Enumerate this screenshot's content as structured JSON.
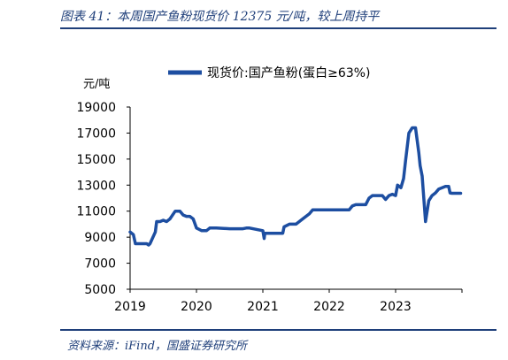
{
  "figure": {
    "title": "图表 41：本周国产鱼粉现货价 12375 元/吨，较上周持平",
    "source": "资料来源：iFind，国盛证券研究所"
  },
  "chart_data": {
    "type": "line",
    "ylabel": "元/吨",
    "ylim": [
      5000,
      19000
    ],
    "yticks": [
      5000,
      7000,
      9000,
      11000,
      13000,
      15000,
      17000,
      19000
    ],
    "ytick_labels": [
      "5000",
      "7000",
      "9000",
      "11000",
      "13000",
      "15000",
      "17000",
      "19000"
    ],
    "xlim": [
      2019.0,
      2024.0
    ],
    "xticks": [
      2019,
      2020,
      2021,
      2022,
      2023
    ],
    "xtick_labels": [
      "2019",
      "2020",
      "2021",
      "2022",
      "2023"
    ],
    "legend_position": "top",
    "series_color": "#1d4ea1",
    "series": [
      {
        "name": "现货价:国产鱼粉(蛋白≥63%)",
        "x": [
          2019.0,
          2019.05,
          2019.08,
          2019.1,
          2019.25,
          2019.28,
          2019.3,
          2019.38,
          2019.4,
          2019.45,
          2019.5,
          2019.55,
          2019.6,
          2019.68,
          2019.75,
          2019.8,
          2019.85,
          2019.9,
          2019.95,
          2020.0,
          2020.08,
          2020.15,
          2020.2,
          2020.3,
          2020.5,
          2020.7,
          2020.75,
          2020.8,
          2020.9,
          2021.0,
          2021.02,
          2021.03,
          2021.05,
          2021.1,
          2021.3,
          2021.32,
          2021.4,
          2021.5,
          2021.6,
          2021.7,
          2021.75,
          2022.0,
          2022.3,
          2022.35,
          2022.4,
          2022.55,
          2022.6,
          2022.65,
          2022.7,
          2022.8,
          2022.85,
          2022.9,
          2022.95,
          2023.0,
          2023.03,
          2023.08,
          2023.12,
          2023.15,
          2023.2,
          2023.25,
          2023.3,
          2023.35,
          2023.37,
          2023.4,
          2023.45,
          2023.5,
          2023.55,
          2023.6,
          2023.65,
          2023.75,
          2023.8,
          2023.82,
          2023.85,
          2023.95,
          2023.98
        ],
        "y": [
          9400,
          9200,
          8500,
          8500,
          8500,
          8400,
          8500,
          9400,
          10200,
          10200,
          10300,
          10200,
          10400,
          11000,
          11000,
          10700,
          10600,
          10600,
          10400,
          9700,
          9500,
          9500,
          9700,
          9700,
          9650,
          9650,
          9700,
          9700,
          9600,
          9500,
          8900,
          9300,
          9300,
          9300,
          9300,
          9800,
          10000,
          10000,
          10400,
          10800,
          11100,
          11100,
          11100,
          11400,
          11500,
          11500,
          12000,
          12200,
          12200,
          12200,
          11900,
          12200,
          12300,
          12200,
          13000,
          12800,
          13500,
          14900,
          17000,
          17400,
          17400,
          15500,
          14500,
          13700,
          10200,
          11800,
          12200,
          12400,
          12700,
          12900,
          12900,
          12400,
          12375,
          12375,
          12375
        ]
      }
    ]
  }
}
